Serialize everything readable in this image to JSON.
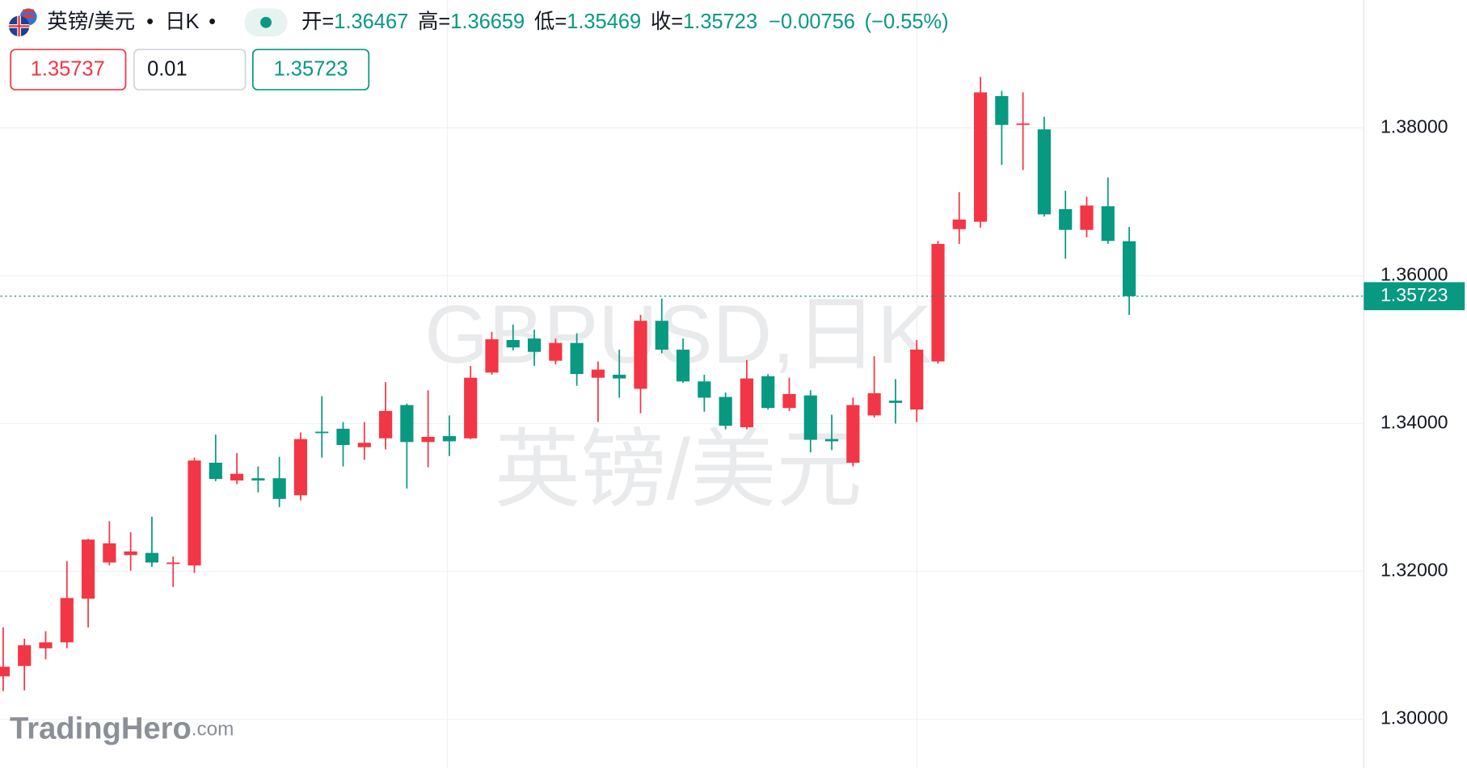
{
  "header": {
    "symbol": "英镑/美元",
    "interval": "日K",
    "separator": "•",
    "open_label": "开=",
    "open": 1.36467,
    "high_label": "高=",
    "high": 1.36659,
    "low_label": "低=",
    "low": 1.35469,
    "close_label": "收=",
    "close": 1.35723,
    "change": {
      "value": -0.00756,
      "label": "−0.00756"
    },
    "change_pct": {
      "value": -0.55,
      "label": "(−0.55%)"
    },
    "sell_price": 1.35737,
    "spread": 0.01,
    "buy_price": 1.35723
  },
  "watermark": {
    "line1": "GBPUSD,日K",
    "line2": "英镑/美元"
  },
  "logo": {
    "brand": "TradingHero",
    "suffix": ".com"
  },
  "chart_data": {
    "type": "candlestick",
    "up_color": "#f23645",
    "down_color": "#089981",
    "grid": true,
    "ylim": [
      1.2934,
      1.3973
    ],
    "yticks": [
      {
        "value": 1.3,
        "label": "1.30000"
      },
      {
        "value": 1.32,
        "label": "1.32000"
      },
      {
        "value": 1.34,
        "label": "1.34000"
      },
      {
        "value": 1.36,
        "label": "1.36000"
      },
      {
        "value": 1.38,
        "label": "1.38000"
      }
    ],
    "last_price": 1.35723,
    "open": [
      1.3058,
      1.3072,
      1.3096,
      1.3104,
      1.3163,
      1.3212,
      1.3222,
      1.3225,
      1.321,
      1.3208,
      1.3347,
      1.3323,
      1.3326,
      1.3326,
      1.3303,
      1.3389,
      1.3393,
      1.3368,
      1.338,
      1.3425,
      1.3375,
      1.3383,
      1.338,
      1.3469,
      1.3513,
      1.3515,
      1.3485,
      1.3509,
      1.3462,
      1.3466,
      1.3447,
      1.3539,
      1.35,
      1.3457,
      1.3436,
      1.3395,
      1.3464,
      1.3421,
      1.3438,
      1.3379,
      1.3347,
      1.3411,
      1.3431,
      1.3419,
      1.3484,
      1.3663,
      1.3673,
      1.3843,
      1.3804,
      1.3798,
      1.369,
      1.3662,
      1.3694,
      1.36467
    ],
    "high": [
      1.3124,
      1.3109,
      1.3119,
      1.3214,
      1.3244,
      1.3268,
      1.3253,
      1.3274,
      1.322,
      1.3354,
      1.3385,
      1.336,
      1.3342,
      1.3355,
      1.3388,
      1.3437,
      1.3402,
      1.3402,
      1.3456,
      1.3427,
      1.3445,
      1.3411,
      1.3478,
      1.3524,
      1.3534,
      1.3527,
      1.3515,
      1.3522,
      1.3484,
      1.35,
      1.3547,
      1.3569,
      1.3515,
      1.3466,
      1.3442,
      1.3486,
      1.3467,
      1.3462,
      1.3445,
      1.3412,
      1.3435,
      1.3491,
      1.346,
      1.3513,
      1.3647,
      1.3713,
      1.3869,
      1.385,
      1.3848,
      1.3815,
      1.3715,
      1.3707,
      1.3733,
      1.36659
    ],
    "low": [
      1.3038,
      1.3039,
      1.3081,
      1.3096,
      1.3124,
      1.3208,
      1.3201,
      1.3206,
      1.3179,
      1.3198,
      1.3322,
      1.3318,
      1.3307,
      1.3287,
      1.3296,
      1.3354,
      1.3342,
      1.3351,
      1.3365,
      1.3312,
      1.3341,
      1.3356,
      1.3379,
      1.3466,
      1.3499,
      1.3478,
      1.348,
      1.3451,
      1.3402,
      1.3435,
      1.3414,
      1.3495,
      1.3455,
      1.3416,
      1.3392,
      1.3392,
      1.3419,
      1.3417,
      1.3361,
      1.3364,
      1.3342,
      1.3408,
      1.34,
      1.3402,
      1.3481,
      1.3643,
      1.3665,
      1.375,
      1.3743,
      1.368,
      1.3623,
      1.3652,
      1.3643,
      1.35469
    ],
    "close": [
      1.3071,
      1.31,
      1.3104,
      1.3164,
      1.3243,
      1.3238,
      1.3227,
      1.3212,
      1.3212,
      1.335,
      1.3325,
      1.3332,
      1.3323,
      1.3298,
      1.3379,
      1.3387,
      1.3371,
      1.3374,
      1.3417,
      1.3375,
      1.3382,
      1.3376,
      1.3462,
      1.3514,
      1.3503,
      1.3497,
      1.3509,
      1.3467,
      1.3473,
      1.3461,
      1.3539,
      1.35,
      1.3457,
      1.3435,
      1.3397,
      1.3461,
      1.3421,
      1.344,
      1.3378,
      1.3376,
      1.3425,
      1.3441,
      1.3428,
      1.35,
      1.3643,
      1.3676,
      1.3848,
      1.3804,
      1.3806,
      1.3683,
      1.3662,
      1.3695,
      1.3647,
      1.35723
    ]
  }
}
